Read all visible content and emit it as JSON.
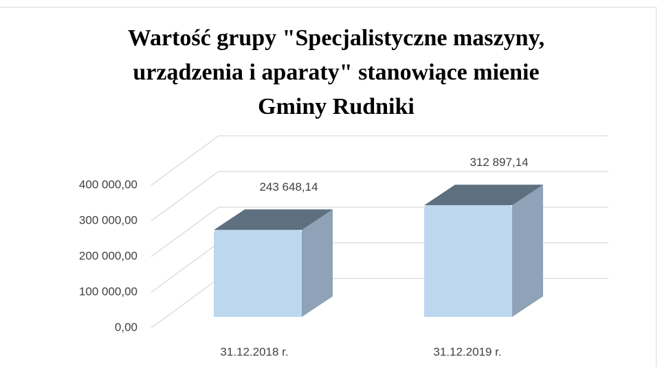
{
  "chart_data": {
    "type": "bar3d",
    "title": [
      "Wartość grupy \"Specjalistyczne maszyny,",
      "urządzenia i aparaty\" stanowiące mienie",
      "Gminy Rudniki"
    ],
    "categories": [
      "31.12.2018 r.",
      "31.12.2019 r."
    ],
    "values": [
      243648.14,
      312897.14
    ],
    "value_labels": [
      "243 648,14",
      "312 897,14"
    ],
    "ylim": [
      0,
      400000
    ],
    "yticks": [
      {
        "value": 0,
        "label": "0,00"
      },
      {
        "value": 100000,
        "label": "100 000,00"
      },
      {
        "value": 200000,
        "label": "200 000,00"
      },
      {
        "value": 300000,
        "label": "300 000,00"
      },
      {
        "value": 400000,
        "label": "400 000,00"
      }
    ],
    "grid": true,
    "color": "#bdd7ee"
  }
}
